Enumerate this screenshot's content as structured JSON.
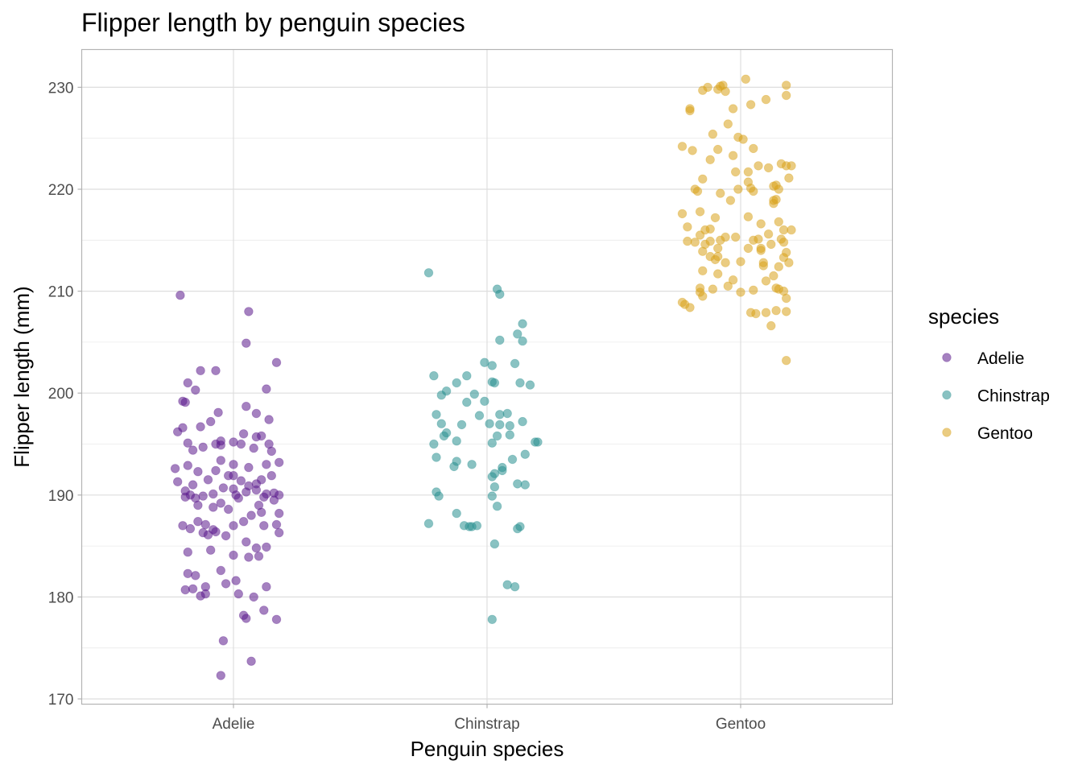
{
  "chart_data": {
    "type": "scatter",
    "title": "Flipper length by penguin species",
    "xlabel": "Penguin species",
    "ylabel": "Flipper length (mm)",
    "categories": [
      "Adelie",
      "Chinstrap",
      "Gentoo"
    ],
    "ylim": [
      169.5,
      233.5
    ],
    "yticks": [
      170,
      180,
      190,
      200,
      210,
      220,
      230
    ],
    "grid": true,
    "legend": {
      "title": "species",
      "position": "right"
    },
    "series": [
      {
        "name": "Adelie",
        "color": "#5b1a8c",
        "points": [
          [
            0.79,
            209.6
          ],
          [
            0.87,
            202.2
          ],
          [
            0.93,
            202.2
          ],
          [
            1.06,
            208.0
          ],
          [
            1.05,
            204.9
          ],
          [
            1.17,
            203.0
          ],
          [
            0.82,
            201.0
          ],
          [
            0.85,
            200.3
          ],
          [
            0.81,
            199.1
          ],
          [
            0.8,
            199.2
          ],
          [
            0.94,
            198.1
          ],
          [
            1.09,
            198.0
          ],
          [
            1.13,
            200.4
          ],
          [
            1.05,
            198.7
          ],
          [
            1.14,
            197.4
          ],
          [
            0.91,
            197.2
          ],
          [
            0.87,
            196.7
          ],
          [
            0.8,
            196.6
          ],
          [
            0.95,
            195.3
          ],
          [
            1.0,
            195.2
          ],
          [
            1.04,
            196.0
          ],
          [
            1.09,
            195.7
          ],
          [
            1.14,
            195.0
          ],
          [
            1.11,
            195.8
          ],
          [
            0.78,
            196.2
          ],
          [
            0.82,
            195.1
          ],
          [
            0.84,
            194.4
          ],
          [
            0.88,
            194.7
          ],
          [
            0.93,
            195.0
          ],
          [
            0.95,
            194.9
          ],
          [
            1.03,
            195.0
          ],
          [
            1.08,
            194.6
          ],
          [
            1.15,
            194.3
          ],
          [
            1.06,
            192.7
          ],
          [
            1.0,
            193.0
          ],
          [
            0.95,
            193.4
          ],
          [
            0.82,
            192.9
          ],
          [
            0.77,
            192.6
          ],
          [
            0.86,
            192.3
          ],
          [
            1.13,
            193.0
          ],
          [
            1.18,
            193.2
          ],
          [
            0.93,
            192.4
          ],
          [
            1.0,
            191.9
          ],
          [
            1.03,
            191.4
          ],
          [
            1.09,
            191.1
          ],
          [
            1.11,
            191.5
          ],
          [
            1.15,
            191.9
          ],
          [
            0.9,
            191.5
          ],
          [
            0.84,
            191.0
          ],
          [
            0.78,
            191.3
          ],
          [
            0.81,
            190.4
          ],
          [
            0.83,
            190.0
          ],
          [
            0.85,
            189.7
          ],
          [
            0.88,
            189.9
          ],
          [
            0.92,
            190.1
          ],
          [
            0.96,
            190.7
          ],
          [
            1.0,
            190.6
          ],
          [
            1.05,
            190.3
          ],
          [
            1.09,
            190.5
          ],
          [
            1.13,
            190.1
          ],
          [
            1.18,
            190.0
          ],
          [
            1.16,
            189.5
          ],
          [
            1.1,
            189.0
          ],
          [
            1.02,
            189.7
          ],
          [
            1.01,
            190.0
          ],
          [
            0.95,
            189.2
          ],
          [
            0.86,
            189.0
          ],
          [
            0.81,
            189.8
          ],
          [
            1.07,
            188.0
          ],
          [
            1.11,
            188.3
          ],
          [
            0.98,
            188.6
          ],
          [
            1.18,
            188.2
          ],
          [
            0.86,
            187.4
          ],
          [
            0.8,
            187.0
          ],
          [
            0.83,
            186.7
          ],
          [
            0.89,
            187.1
          ],
          [
            0.92,
            186.6
          ],
          [
            1.0,
            187.0
          ],
          [
            1.04,
            187.4
          ],
          [
            1.12,
            187.0
          ],
          [
            1.17,
            187.1
          ],
          [
            0.88,
            186.3
          ],
          [
            0.93,
            186.4
          ],
          [
            0.97,
            186.0
          ],
          [
            1.05,
            185.4
          ],
          [
            1.09,
            184.8
          ],
          [
            1.13,
            184.9
          ],
          [
            0.82,
            184.4
          ],
          [
            0.91,
            184.6
          ],
          [
            1.0,
            184.1
          ],
          [
            1.06,
            183.9
          ],
          [
            1.1,
            184.0
          ],
          [
            0.95,
            182.6
          ],
          [
            0.82,
            182.3
          ],
          [
            0.85,
            182.1
          ],
          [
            0.89,
            181.0
          ],
          [
            0.97,
            181.3
          ],
          [
            1.01,
            181.6
          ],
          [
            1.13,
            181.0
          ],
          [
            0.81,
            180.7
          ],
          [
            0.84,
            180.8
          ],
          [
            0.87,
            180.1
          ],
          [
            0.89,
            180.3
          ],
          [
            1.02,
            180.3
          ],
          [
            1.08,
            180.0
          ],
          [
            1.04,
            178.2
          ],
          [
            1.05,
            177.9
          ],
          [
            1.12,
            178.7
          ],
          [
            1.17,
            177.8
          ],
          [
            0.96,
            175.7
          ],
          [
            1.07,
            173.7
          ],
          [
            0.95,
            172.3
          ],
          [
            1.18,
            186.3
          ],
          [
            0.9,
            186.1
          ],
          [
            1.16,
            190.2
          ],
          [
            0.98,
            191.9
          ],
          [
            1.06,
            190.9
          ],
          [
            1.12,
            189.8
          ],
          [
            0.92,
            188.8
          ]
        ]
      },
      {
        "name": "Chinstrap",
        "color": "#288f8f",
        "points": [
          [
            1.77,
            211.8
          ],
          [
            2.04,
            210.2
          ],
          [
            2.05,
            209.7
          ],
          [
            2.14,
            206.8
          ],
          [
            2.12,
            205.8
          ],
          [
            2.05,
            205.2
          ],
          [
            2.14,
            205.1
          ],
          [
            1.99,
            203.0
          ],
          [
            2.11,
            202.9
          ],
          [
            2.02,
            202.7
          ],
          [
            1.79,
            201.7
          ],
          [
            1.92,
            201.7
          ],
          [
            1.88,
            201.0
          ],
          [
            2.02,
            201.1
          ],
          [
            2.03,
            201.0
          ],
          [
            2.13,
            201.0
          ],
          [
            2.17,
            200.8
          ],
          [
            1.84,
            200.2
          ],
          [
            1.82,
            199.8
          ],
          [
            1.95,
            199.9
          ],
          [
            1.99,
            199.2
          ],
          [
            1.92,
            199.1
          ],
          [
            2.08,
            198.0
          ],
          [
            1.8,
            197.9
          ],
          [
            1.97,
            197.8
          ],
          [
            2.05,
            197.9
          ],
          [
            1.82,
            197.0
          ],
          [
            1.9,
            196.9
          ],
          [
            2.01,
            197.0
          ],
          [
            2.05,
            196.9
          ],
          [
            2.14,
            197.2
          ],
          [
            1.84,
            196.1
          ],
          [
            1.83,
            195.8
          ],
          [
            1.88,
            195.3
          ],
          [
            2.04,
            195.8
          ],
          [
            2.09,
            195.9
          ],
          [
            2.02,
            195.1
          ],
          [
            2.19,
            195.2
          ],
          [
            2.2,
            195.2
          ],
          [
            1.79,
            195.0
          ],
          [
            1.8,
            193.7
          ],
          [
            1.88,
            193.3
          ],
          [
            2.15,
            194.0
          ],
          [
            1.87,
            192.8
          ],
          [
            1.94,
            193.0
          ],
          [
            2.06,
            192.7
          ],
          [
            2.1,
            193.5
          ],
          [
            2.03,
            192.1
          ],
          [
            2.02,
            191.8
          ],
          [
            2.12,
            191.1
          ],
          [
            2.15,
            191.0
          ],
          [
            2.03,
            190.8
          ],
          [
            1.8,
            190.3
          ],
          [
            1.81,
            189.9
          ],
          [
            2.02,
            189.9
          ],
          [
            2.04,
            188.9
          ],
          [
            1.88,
            188.2
          ],
          [
            1.77,
            187.2
          ],
          [
            1.91,
            187.0
          ],
          [
            1.93,
            186.9
          ],
          [
            1.94,
            186.9
          ],
          [
            2.13,
            186.9
          ],
          [
            2.12,
            186.7
          ],
          [
            2.03,
            185.2
          ],
          [
            2.08,
            181.2
          ],
          [
            2.11,
            181.0
          ],
          [
            2.02,
            177.8
          ],
          [
            1.96,
            187.0
          ],
          [
            2.09,
            196.8
          ],
          [
            2.06,
            192.4
          ]
        ]
      },
      {
        "name": "Gentoo",
        "color": "#d9a21b",
        "points": [
          [
            3.02,
            230.8
          ],
          [
            3.18,
            230.2
          ],
          [
            2.93,
            230.2
          ],
          [
            2.91,
            229.8
          ],
          [
            2.87,
            230.0
          ],
          [
            2.94,
            229.6
          ],
          [
            2.92,
            230.1
          ],
          [
            2.85,
            229.7
          ],
          [
            3.1,
            228.8
          ],
          [
            3.18,
            229.2
          ],
          [
            3.04,
            228.3
          ],
          [
            2.8,
            227.9
          ],
          [
            2.8,
            227.7
          ],
          [
            2.97,
            227.9
          ],
          [
            2.95,
            226.4
          ],
          [
            2.89,
            225.4
          ],
          [
            2.99,
            225.1
          ],
          [
            3.01,
            224.9
          ],
          [
            2.77,
            224.2
          ],
          [
            2.81,
            223.8
          ],
          [
            2.91,
            223.9
          ],
          [
            2.97,
            223.3
          ],
          [
            2.88,
            222.9
          ],
          [
            3.05,
            224.0
          ],
          [
            3.16,
            222.5
          ],
          [
            3.18,
            222.3
          ],
          [
            3.2,
            222.3
          ],
          [
            3.07,
            222.3
          ],
          [
            3.03,
            221.7
          ],
          [
            3.11,
            222.1
          ],
          [
            3.14,
            220.4
          ],
          [
            3.19,
            221.1
          ],
          [
            2.82,
            220.0
          ],
          [
            2.83,
            219.8
          ],
          [
            2.92,
            219.6
          ],
          [
            2.99,
            220.0
          ],
          [
            3.03,
            220.7
          ],
          [
            3.04,
            220.1
          ],
          [
            3.05,
            219.8
          ],
          [
            3.13,
            220.3
          ],
          [
            3.15,
            220.0
          ],
          [
            2.85,
            221.0
          ],
          [
            2.96,
            218.9
          ],
          [
            3.14,
            219.0
          ],
          [
            3.13,
            218.9
          ],
          [
            2.98,
            221.7
          ],
          [
            2.84,
            217.8
          ],
          [
            2.77,
            217.6
          ],
          [
            2.79,
            216.3
          ],
          [
            2.88,
            216.1
          ],
          [
            2.9,
            217.2
          ],
          [
            3.03,
            217.3
          ],
          [
            3.08,
            216.6
          ],
          [
            3.15,
            216.8
          ],
          [
            3.17,
            216.0
          ],
          [
            3.2,
            216.0
          ],
          [
            3.11,
            215.6
          ],
          [
            2.84,
            215.5
          ],
          [
            2.82,
            214.8
          ],
          [
            2.88,
            214.9
          ],
          [
            2.92,
            215.0
          ],
          [
            2.94,
            215.3
          ],
          [
            2.98,
            215.3
          ],
          [
            3.07,
            215.1
          ],
          [
            3.12,
            214.6
          ],
          [
            3.16,
            215.1
          ],
          [
            3.17,
            214.8
          ],
          [
            2.79,
            214.9
          ],
          [
            3.03,
            214.2
          ],
          [
            3.08,
            214.2
          ],
          [
            2.85,
            213.9
          ],
          [
            2.88,
            213.4
          ],
          [
            2.91,
            213.4
          ],
          [
            3.08,
            214.0
          ],
          [
            3.18,
            213.8
          ],
          [
            3.17,
            213.3
          ],
          [
            2.9,
            213.1
          ],
          [
            2.94,
            212.8
          ],
          [
            3.0,
            212.9
          ],
          [
            3.09,
            212.5
          ],
          [
            3.09,
            212.8
          ],
          [
            3.15,
            212.4
          ],
          [
            2.85,
            212.0
          ],
          [
            2.91,
            211.7
          ],
          [
            2.97,
            211.1
          ],
          [
            3.13,
            211.5
          ],
          [
            2.84,
            210.3
          ],
          [
            2.89,
            210.2
          ],
          [
            2.84,
            209.9
          ],
          [
            3.0,
            209.9
          ],
          [
            3.05,
            210.1
          ],
          [
            3.14,
            210.3
          ],
          [
            3.15,
            210.2
          ],
          [
            3.17,
            210.0
          ],
          [
            2.85,
            209.5
          ],
          [
            2.77,
            208.9
          ],
          [
            2.78,
            208.7
          ],
          [
            2.8,
            208.4
          ],
          [
            3.04,
            207.9
          ],
          [
            3.06,
            207.8
          ],
          [
            3.1,
            207.9
          ],
          [
            3.14,
            208.1
          ],
          [
            3.18,
            208.0
          ],
          [
            3.12,
            206.6
          ],
          [
            3.18,
            209.3
          ],
          [
            3.18,
            203.2
          ],
          [
            3.13,
            218.6
          ],
          [
            2.86,
            216.0
          ],
          [
            2.91,
            214.2
          ],
          [
            3.05,
            215.0
          ],
          [
            3.1,
            211.0
          ],
          [
            2.86,
            214.6
          ],
          [
            2.95,
            210.5
          ],
          [
            3.19,
            212.8
          ]
        ]
      }
    ]
  }
}
